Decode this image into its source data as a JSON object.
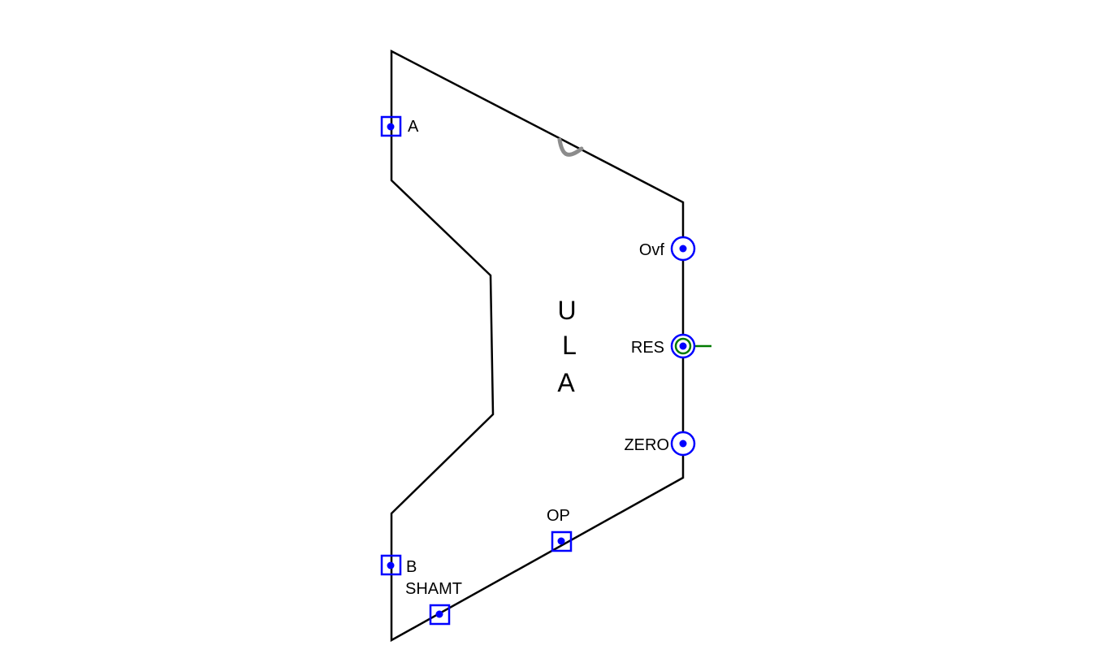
{
  "component": {
    "title_letters": [
      "U",
      "L",
      "A"
    ],
    "outline_color": "#000000",
    "state_mark_color": "#8c8c8c"
  },
  "pins": {
    "color": "#0000ff",
    "inputs": [
      {
        "label": "A",
        "shape": "square"
      },
      {
        "label": "B",
        "shape": "square"
      },
      {
        "label": "SHAMT",
        "shape": "square"
      },
      {
        "label": "OP",
        "shape": "square"
      }
    ],
    "outputs": [
      {
        "label": "Ovf",
        "shape": "circle"
      },
      {
        "label": "RES",
        "shape": "circle",
        "connected": true
      },
      {
        "label": "ZERO",
        "shape": "circle"
      }
    ]
  },
  "wire": {
    "color": "#007a00"
  }
}
